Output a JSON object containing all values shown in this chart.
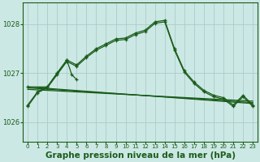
{
  "background_color": "#cce8e4",
  "grid_color": "#aacccc",
  "line_color": "#1a5c1a",
  "xlabel": "Graphe pression niveau de la mer (hPa)",
  "xlabel_fontsize": 7.5,
  "ylim": [
    1025.6,
    1028.45
  ],
  "xlim": [
    -0.5,
    23.5
  ],
  "yticks": [
    1026,
    1027,
    1028
  ],
  "xticks": [
    0,
    1,
    2,
    3,
    4,
    5,
    6,
    7,
    8,
    9,
    10,
    11,
    12,
    13,
    14,
    15,
    16,
    17,
    18,
    19,
    20,
    21,
    22,
    23
  ],
  "curve_main": {
    "x": [
      0,
      1,
      2,
      3,
      4,
      5,
      6,
      7,
      8,
      9,
      10,
      11,
      12,
      13,
      14,
      15,
      16,
      17,
      18,
      19,
      20,
      21,
      22,
      23
    ],
    "y": [
      1026.35,
      1026.62,
      1026.72,
      1027.0,
      1027.27,
      1027.17,
      1027.35,
      1027.5,
      1027.6,
      1027.7,
      1027.72,
      1027.82,
      1027.88,
      1028.05,
      1028.08,
      1027.5,
      1027.05,
      1026.82,
      1026.65,
      1026.55,
      1026.5,
      1026.35,
      1026.55,
      1026.35
    ]
  },
  "curve_secondary": {
    "x": [
      0,
      1,
      2,
      3,
      4,
      5,
      6,
      7,
      8,
      9,
      10,
      11,
      12,
      13,
      14,
      15,
      16,
      17,
      18,
      19,
      20,
      21,
      22,
      23
    ],
    "y": [
      1026.32,
      1026.6,
      1026.7,
      1026.97,
      1027.24,
      1027.14,
      1027.32,
      1027.47,
      1027.57,
      1027.67,
      1027.69,
      1027.79,
      1027.85,
      1028.02,
      1028.05,
      1027.47,
      1027.02,
      1026.79,
      1026.62,
      1026.52,
      1026.47,
      1026.32,
      1026.52,
      1026.32
    ]
  },
  "curve_erratic": {
    "x": [
      0,
      2,
      3,
      4,
      4.5,
      5
    ],
    "y": [
      1026.72,
      1026.72,
      1027.0,
      1027.27,
      1026.97,
      1026.87
    ]
  },
  "trend_lines": [
    {
      "x": [
        0,
        23
      ],
      "y": [
        1026.72,
        1026.38
      ]
    },
    {
      "x": [
        0,
        23
      ],
      "y": [
        1026.7,
        1026.4
      ]
    },
    {
      "x": [
        0,
        23
      ],
      "y": [
        1026.67,
        1026.43
      ]
    }
  ]
}
